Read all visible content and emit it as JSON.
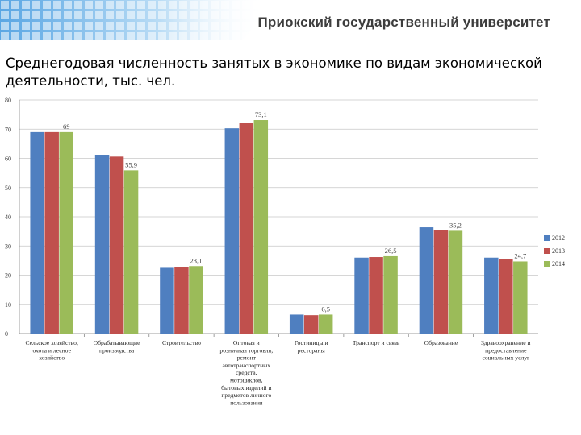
{
  "header": {
    "university": "Приокский государственный университет"
  },
  "slide": {
    "title": "Среднегодовая численность занятых в экономике по видам экономической деятельности, тыс. чел."
  },
  "colors": {
    "s2012": "#4f7fc0",
    "s2013": "#c0504d",
    "s2014": "#9bbb59",
    "header_blue": "#6fb3e8"
  },
  "chart_data": {
    "type": "bar",
    "title": "",
    "xlabel": "",
    "ylabel": "",
    "ylim": [
      0,
      80
    ],
    "yticks": [
      "0",
      "10",
      "20",
      "30",
      "40",
      "50",
      "60",
      "70",
      "80"
    ],
    "grid": true,
    "legend": "right",
    "categories": [
      [
        "Сельское хозяйство,",
        "охота и лесное",
        "хозяйство"
      ],
      [
        "Обрабатывающие",
        "производства"
      ],
      [
        "Строительство"
      ],
      [
        "Оптовая и",
        "розничная торговля;",
        "ремонт",
        "автотранспортных",
        "средств,",
        "мотоциклов,",
        "бытовых изделий и",
        "предметов личного",
        "пользования"
      ],
      [
        "Гостиницы и",
        "рестораны"
      ],
      [
        "Транспорт и связь"
      ],
      [
        "Образование"
      ],
      [
        "Здравоохранение и",
        "предоставление",
        "социальных услуг"
      ]
    ],
    "series": [
      {
        "name": "2012",
        "values": [
          69,
          61,
          22.5,
          70.3,
          6.5,
          26,
          36.4,
          26
        ]
      },
      {
        "name": "2013",
        "values": [
          69,
          60.6,
          22.7,
          72,
          6.3,
          26.2,
          35.5,
          25.4
        ]
      },
      {
        "name": "2014",
        "values": [
          69,
          55.9,
          23.1,
          73.1,
          6.5,
          26.5,
          35.2,
          24.7
        ]
      }
    ],
    "data_labels": [
      "69",
      "55,9",
      "23,1",
      "73,1",
      "6,5",
      "26,5",
      "35,2",
      "24,7"
    ]
  }
}
